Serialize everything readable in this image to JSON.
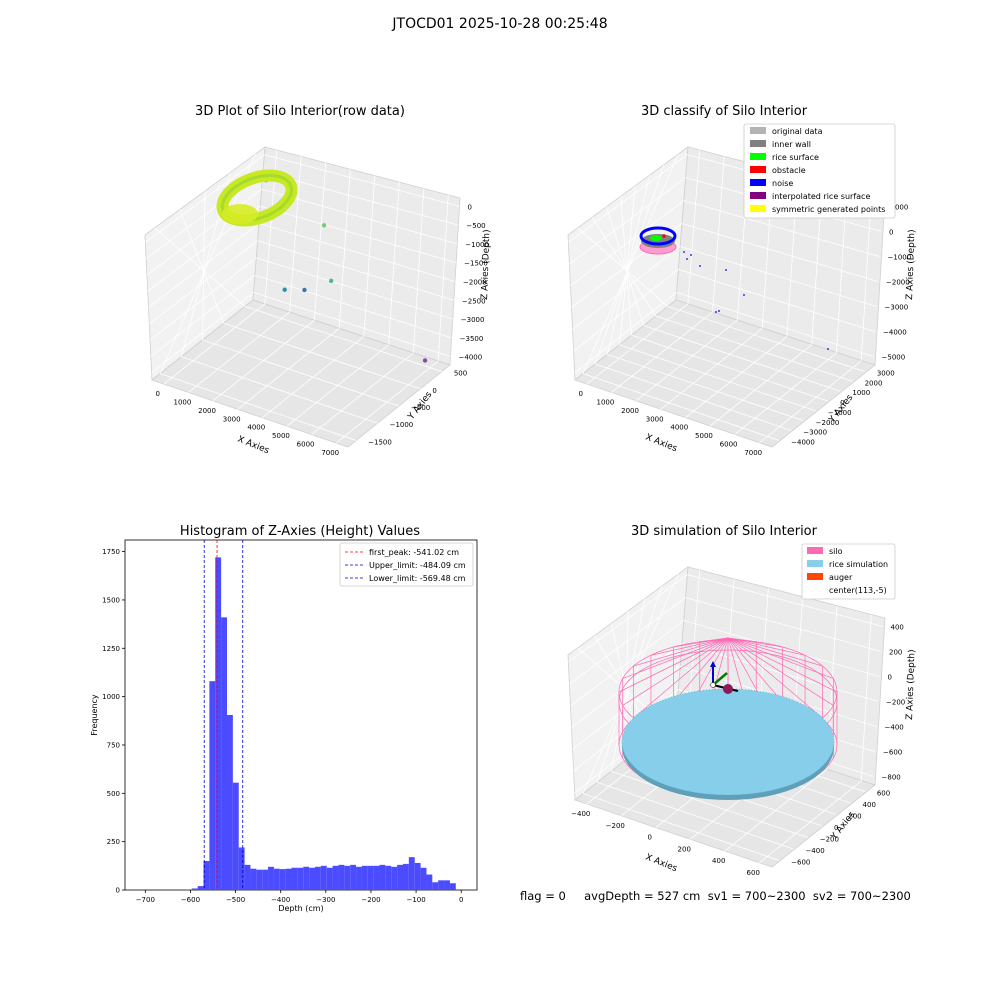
{
  "figure": {
    "suptitle": "JTOCD01 2025-10-28 00:25:48",
    "footer": "flag = 0     avgDepth = 527 cm  sv1 = 700~2300  sv2 = 700~2300"
  },
  "colors": {
    "histogram_bar": "#4b4bff",
    "first_peak_line": "#ff0000",
    "limit_lines": "#0000cc",
    "silo": "#ff69b4",
    "rice_simulation": "#87ceeb",
    "auger": "#ff4500",
    "inner_wall": "#808080",
    "rice_surface": "#00ff00",
    "obstacle": "#ff0000",
    "noise": "#0000ff",
    "interpolated_rice_surface": "#800080",
    "symmetric_generated_points": "#ffff00",
    "original_data": "#b3b3b3"
  },
  "chart_data": [
    {
      "type": "scatter",
      "title": "3D Plot of Silo Interior(row data)",
      "xlabel": "X Axies",
      "ylabel": "Y Axies",
      "zlabel": "Z Axies (Depth)",
      "x_ticks": [
        "0",
        "1000",
        "2000",
        "3000",
        "4000",
        "5000",
        "6000",
        "7000"
      ],
      "y_ticks": [
        "500",
        "0",
        "−500",
        "−1000",
        "−1500"
      ],
      "z_ticks": [
        "0",
        "−500",
        "−1000",
        "−1500",
        "−2000",
        "−2500",
        "−3000",
        "−3500",
        "−4000"
      ],
      "points": [
        {
          "x": 400,
          "y": 200,
          "z": -200,
          "color": "#b8e22a"
        },
        {
          "x": 800,
          "y": 150,
          "z": -300,
          "color": "#9fd83a"
        },
        {
          "x": 1800,
          "y": -50,
          "z": -600,
          "color": "#8fd445"
        },
        {
          "x": 3200,
          "y": 100,
          "z": -1000,
          "color": "#78c97a"
        },
        {
          "x": 3900,
          "y": -300,
          "z": -2200,
          "color": "#4fb3a0"
        },
        {
          "x": 1500,
          "y": 200,
          "z": -3300,
          "color": "#2b8fb0"
        },
        {
          "x": 2200,
          "y": 300,
          "z": -3200,
          "color": "#3a75a8"
        },
        {
          "x": 7200,
          "y": 200,
          "z": -4000,
          "color": "#8a4aa0"
        }
      ]
    },
    {
      "type": "scatter",
      "title": "3D classify of Silo Interior",
      "xlabel": "X Axies",
      "ylabel": "Y Axies",
      "zlabel": "Z Axies (Depth)",
      "x_ticks": [
        "0",
        "1000",
        "2000",
        "3000",
        "4000",
        "5000",
        "6000",
        "7000"
      ],
      "y_ticks": [
        "3000",
        "2000",
        "1000",
        "0",
        "−1000",
        "−2000",
        "−3000",
        "−4000"
      ],
      "z_ticks": [
        "1000",
        "0",
        "−1000",
        "−2000",
        "−3000",
        "−4000",
        "−5000"
      ],
      "legend": [
        {
          "label": "original data",
          "color": "#b3b3b3"
        },
        {
          "label": "inner wall",
          "color": "#808080"
        },
        {
          "label": "rice surface",
          "color": "#00ff00"
        },
        {
          "label": "obstacle",
          "color": "#ff0000"
        },
        {
          "label": "noise",
          "color": "#0000ff"
        },
        {
          "label": "interpolated rice surface",
          "color": "#800080"
        },
        {
          "label": "symmetric generated points",
          "color": "#ffff00"
        }
      ]
    },
    {
      "type": "bar",
      "title": "Histogram of Z-Axies (Height) Values",
      "xlabel": "Depth (cm)",
      "ylabel": "Frequency",
      "xlim": [
        -745,
        35
      ],
      "ylim": [
        0,
        1810
      ],
      "x_ticks": [
        -700,
        -600,
        -500,
        -400,
        -300,
        -200,
        -100,
        0
      ],
      "y_ticks": [
        0,
        250,
        500,
        750,
        1000,
        1250,
        1500,
        1750
      ],
      "bin_width": 13,
      "bin_starts": [
        -610,
        -597,
        -584,
        -571,
        -558,
        -545,
        -532,
        -519,
        -506,
        -493,
        -480,
        -467,
        -454,
        -441,
        -428,
        -415,
        -402,
        -389,
        -376,
        -363,
        -350,
        -337,
        -324,
        -311,
        -298,
        -285,
        -272,
        -259,
        -246,
        -233,
        -220,
        -207,
        -194,
        -181,
        -168,
        -155,
        -142,
        -129,
        -116,
        -103,
        -90,
        -77,
        -64,
        -51,
        -38,
        -25,
        -12
      ],
      "values": [
        3,
        8,
        20,
        150,
        1080,
        1720,
        1410,
        905,
        555,
        220,
        130,
        110,
        105,
        105,
        120,
        110,
        108,
        110,
        115,
        115,
        120,
        115,
        120,
        125,
        115,
        125,
        130,
        125,
        130,
        120,
        125,
        125,
        125,
        130,
        125,
        120,
        130,
        135,
        170,
        140,
        115,
        80,
        40,
        50,
        50,
        35,
        0
      ],
      "vlines": [
        {
          "value": -541.02,
          "label": "first_peak: -541.02 cm",
          "color": "#ff0000"
        },
        {
          "value": -484.09,
          "label": "Upper_limit: -484.09 cm",
          "color": "#0000cc"
        },
        {
          "value": -569.48,
          "label": "Lower_limit: -569.48 cm",
          "color": "#0000cc"
        }
      ]
    },
    {
      "type": "scatter",
      "title": "3D simulation of Silo Interior",
      "xlabel": "X Axies",
      "ylabel": "Y Axies",
      "zlabel": "Z Axies (Depth)",
      "x_ticks": [
        "−400",
        "−200",
        "0",
        "200",
        "400",
        "600"
      ],
      "y_ticks": [
        "600",
        "400",
        "200",
        "0",
        "−200",
        "−400",
        "−600"
      ],
      "z_ticks": [
        "400",
        "200",
        "0",
        "−200",
        "−400",
        "−600",
        "−800"
      ],
      "legend": [
        {
          "label": "silo",
          "color": "#ff69b4"
        },
        {
          "label": "rice simulation",
          "color": "#87ceeb"
        },
        {
          "label": "auger",
          "color": "#ff4500"
        },
        {
          "label": "center(113,-5)",
          "color": ""
        }
      ]
    }
  ]
}
